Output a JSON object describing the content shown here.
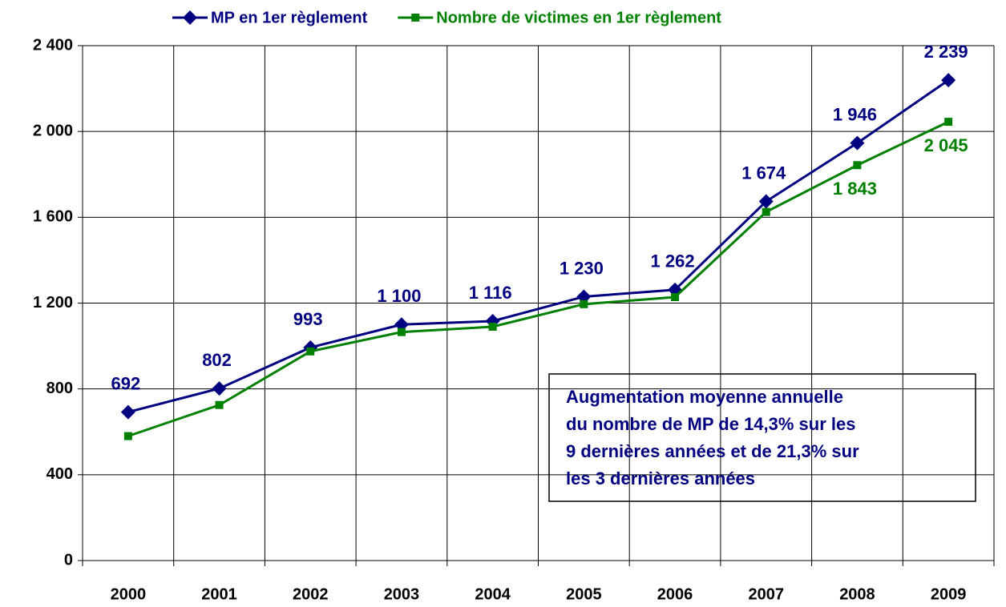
{
  "chart_data": {
    "type": "line",
    "categories": [
      "2000",
      "2001",
      "2002",
      "2003",
      "2004",
      "2005",
      "2006",
      "2007",
      "2008",
      "2009"
    ],
    "series": [
      {
        "name": "MP en 1er règlement",
        "color": "#000080",
        "marker": "diamond",
        "values": [
          692,
          802,
          993,
          1100,
          1116,
          1230,
          1262,
          1674,
          1946,
          2239
        ],
        "value_labels": [
          "692",
          "802",
          "993",
          "1 100",
          "1 116",
          "1 230",
          "1 262",
          "1 674",
          "1 946",
          "2 239"
        ]
      },
      {
        "name": "Nombre de victimes en 1er règlement",
        "color": "#008000",
        "marker": "square",
        "values": [
          580,
          725,
          975,
          1065,
          1090,
          1195,
          1228,
          1625,
          1843,
          2045
        ],
        "value_labels": [
          null,
          null,
          null,
          null,
          null,
          null,
          null,
          null,
          "1 843",
          "2 045"
        ]
      }
    ],
    "ylim": [
      0,
      2400
    ],
    "yticks": [
      0,
      400,
      800,
      {
        "value": 1200,
        "label": "1 200"
      },
      {
        "value": 1600,
        "label": "1 600"
      },
      {
        "value": 2000,
        "label": "2 000"
      },
      {
        "value": 2400,
        "label": "2 400"
      }
    ],
    "grid": true,
    "legend": "top",
    "annotation": [
      "Augmentation moyenne annuelle",
      "du nombre de MP de 14,3% sur les",
      "9 dernières années et de 21,3% sur",
      "les 3 dernières années"
    ]
  }
}
